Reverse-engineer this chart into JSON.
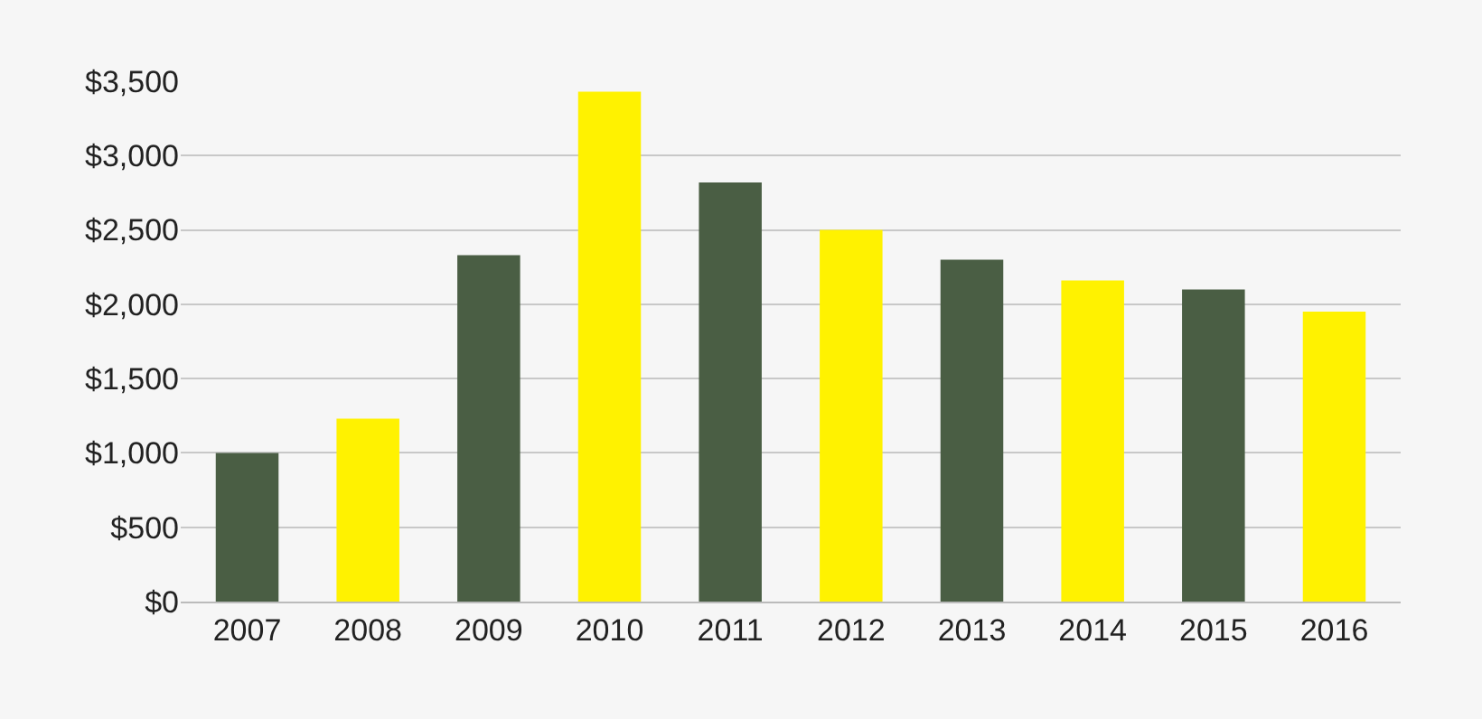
{
  "chart_data": {
    "type": "bar",
    "categories": [
      "2007",
      "2008",
      "2009",
      "2010",
      "2011",
      "2012",
      "2013",
      "2014",
      "2015",
      "2016"
    ],
    "values": [
      1000,
      1230,
      2330,
      3430,
      2820,
      2500,
      2300,
      2160,
      2100,
      1950
    ],
    "colors": [
      "#4a5e44",
      "#fff200",
      "#4a5e44",
      "#fff200",
      "#4a5e44",
      "#fff200",
      "#4a5e44",
      "#fff200",
      "#4a5e44",
      "#fff200"
    ],
    "ylim": [
      0,
      3500
    ],
    "yticks": [
      {
        "value": 0,
        "label": "$0"
      },
      {
        "value": 500,
        "label": "$500"
      },
      {
        "value": 1000,
        "label": "$1,000"
      },
      {
        "value": 1500,
        "label": "$1,500"
      },
      {
        "value": 2000,
        "label": "$2,000"
      },
      {
        "value": 2500,
        "label": "$2,500"
      },
      {
        "value": 3000,
        "label": "$3,000"
      },
      {
        "value": 3500,
        "label": "$3,500"
      }
    ],
    "grid": "y"
  }
}
